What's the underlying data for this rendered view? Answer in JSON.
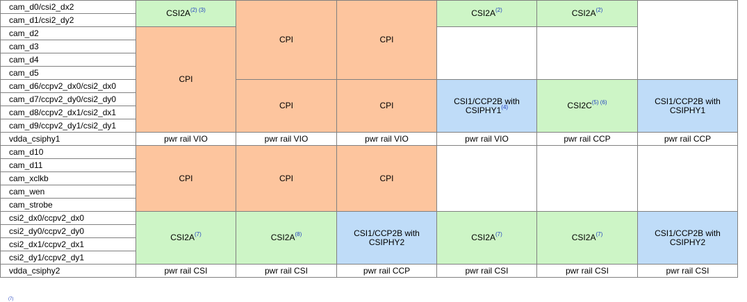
{
  "signals": [
    "cam_d0/csi2_dx2",
    "cam_d1/csi2_dy2",
    "cam_d2",
    "cam_d3",
    "cam_d4",
    "cam_d5",
    "cam_d6/ccpv2_dx0/csi2_dx0",
    "cam_d7/ccpv2_dy0/csi2_dy0",
    "cam_d8/ccpv2_dx1/csi2_dx1",
    "cam_d9/ccpv2_dy1/csi2_dy1",
    "vdda_csiphy1",
    "cam_d10",
    "cam_d11",
    "cam_xclkb",
    "cam_wen",
    "cam_strobe",
    "csi2_dx0/ccpv2_dx0",
    "csi2_dy0/ccpv2_dy0",
    "csi2_dx1/ccpv2_dx1",
    "csi2_dy1/ccpv2_dy1",
    "vdda_csiphy2"
  ],
  "modes": {
    "csi2a": "CSI2A",
    "csi2c": "CSI2C",
    "cpi": "CPI",
    "csi1_ccp2b_line1": "CSI1/CCP2B with",
    "csiphy1": "CSIPHY1",
    "csiphy2": "CSIPHY2"
  },
  "notes": {
    "n2": "(2)",
    "n3": "(3)",
    "n4": "(4)",
    "n5": "(5)",
    "n6": "(6)",
    "n7": "(7)",
    "n8": "(8)"
  },
  "power": {
    "vio": "pwr rail VIO",
    "ccp": "pwr rail CCP",
    "csi": "pwr rail CSI"
  },
  "footnote_marker": "(7)",
  "colors": {
    "cpi": "#FDC59E",
    "csi2": "#CDF5C6",
    "ccp2b": "#BFDCF8",
    "border": "#808080",
    "note_link": "#1F3FBF"
  }
}
